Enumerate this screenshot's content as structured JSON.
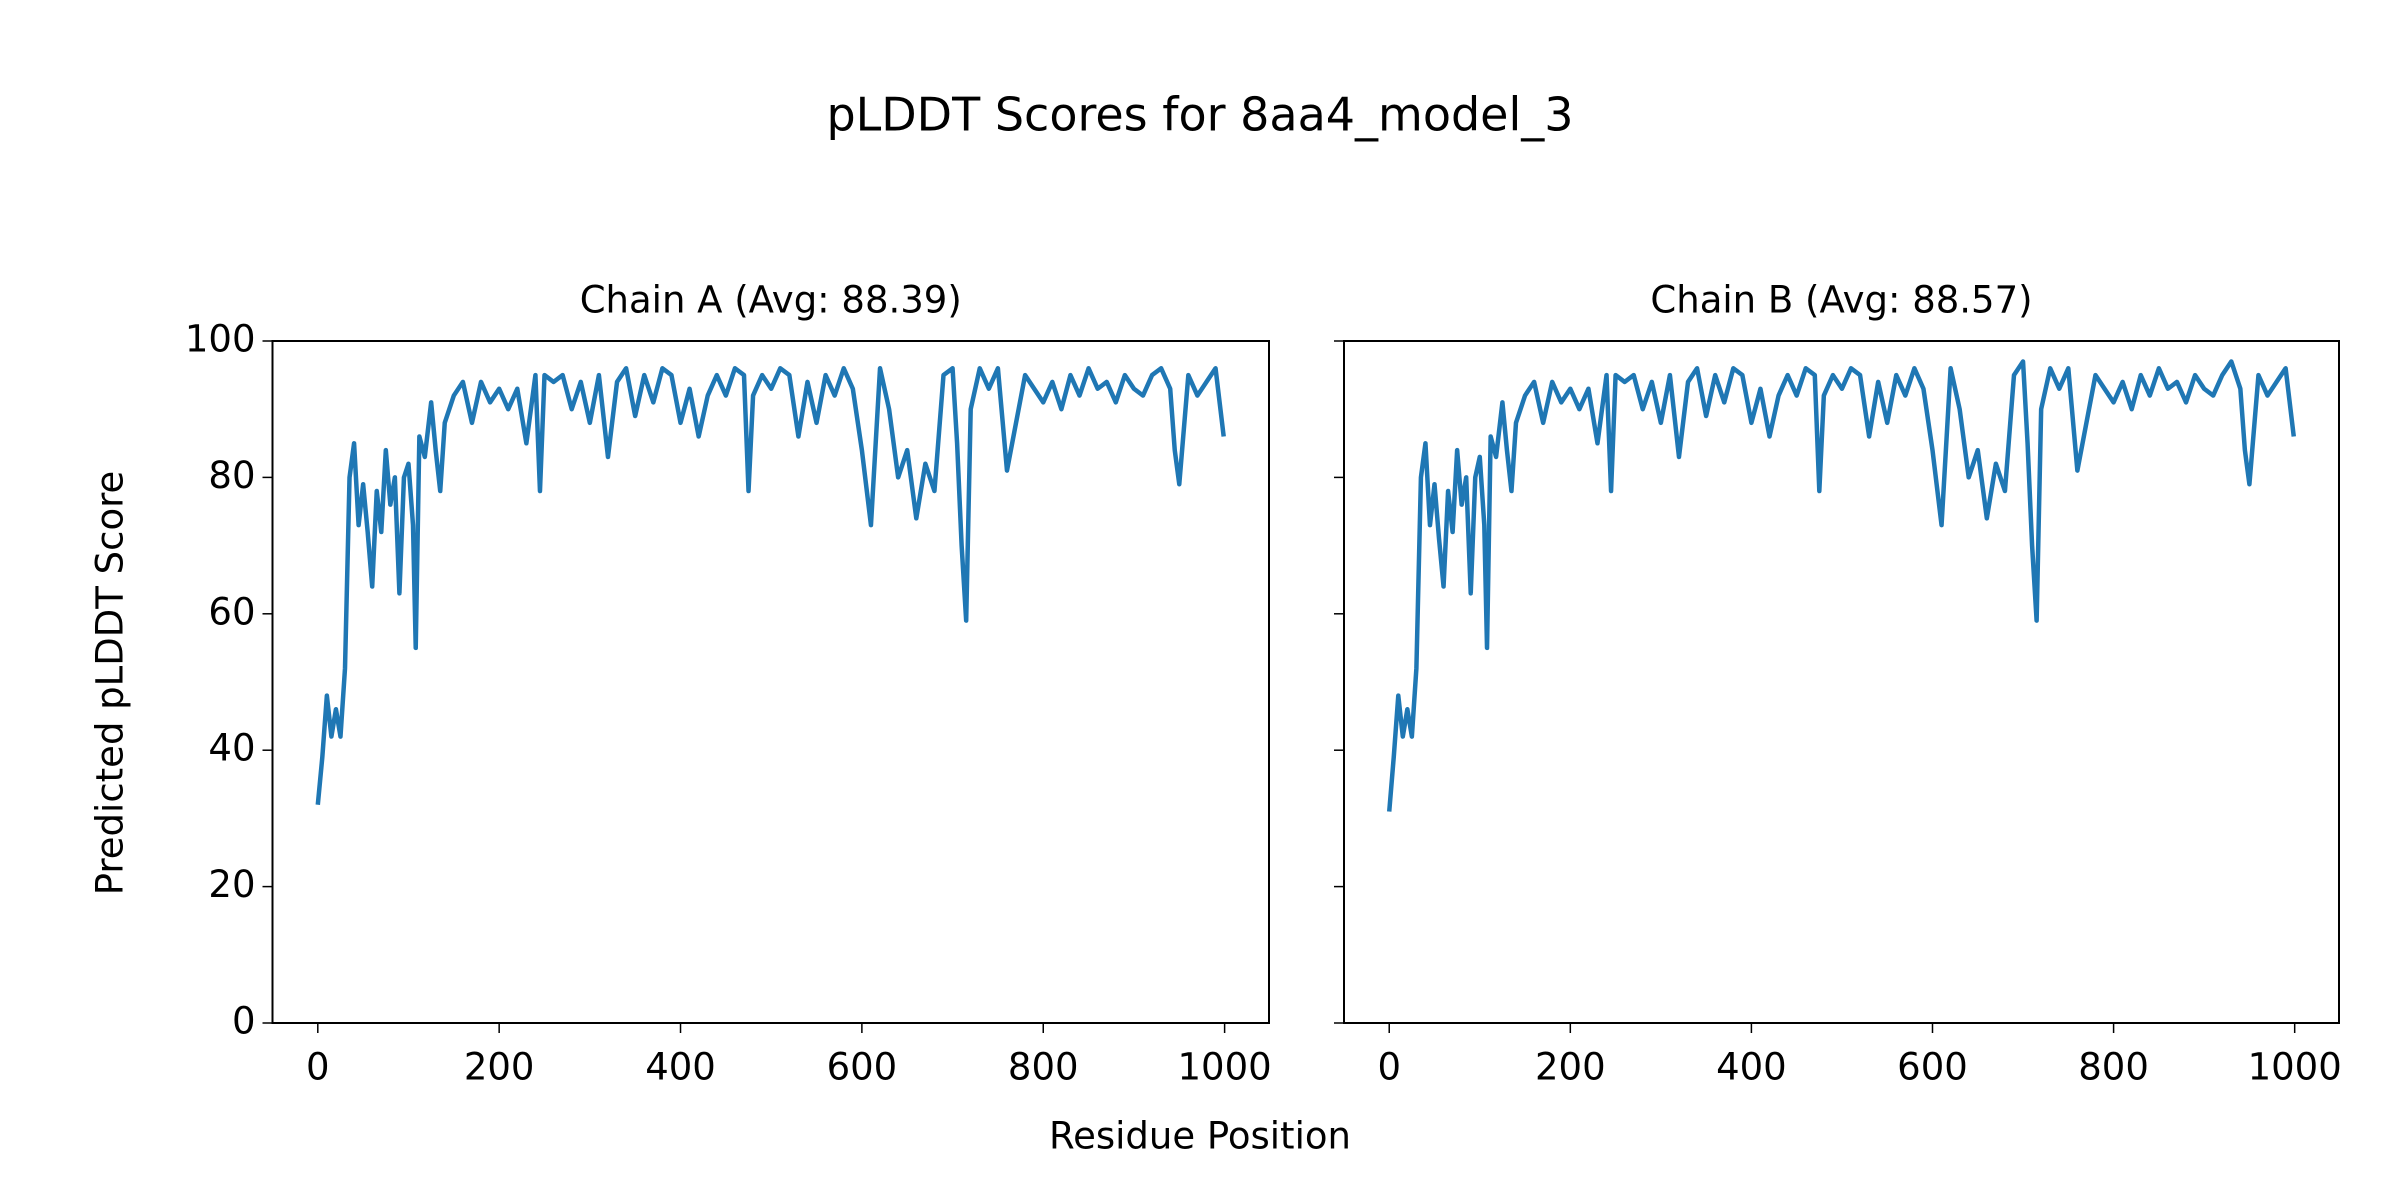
{
  "figure": {
    "title": "pLDDT Scores for 8aa4_model_3",
    "xlabel": "Residue Position",
    "ylabel": "Predicted pLDDT Score"
  },
  "chart_data": [
    {
      "type": "line",
      "title": "Chain A (Avg: 88.39)",
      "color": "#1f77b4",
      "x": [
        0,
        5,
        10,
        15,
        20,
        25,
        30,
        35,
        40,
        45,
        50,
        55,
        60,
        65,
        70,
        75,
        80,
        85,
        90,
        95,
        100,
        105,
        108,
        112,
        118,
        125,
        130,
        135,
        140,
        150,
        160,
        170,
        180,
        190,
        200,
        210,
        220,
        230,
        240,
        245,
        250,
        260,
        270,
        280,
        290,
        300,
        310,
        320,
        330,
        340,
        350,
        360,
        370,
        380,
        390,
        400,
        410,
        420,
        430,
        440,
        450,
        460,
        470,
        475,
        480,
        490,
        500,
        510,
        520,
        530,
        540,
        550,
        560,
        570,
        580,
        590,
        600,
        610,
        620,
        630,
        640,
        650,
        660,
        670,
        680,
        690,
        700,
        705,
        710,
        715,
        720,
        730,
        740,
        750,
        760,
        770,
        780,
        790,
        800,
        810,
        820,
        830,
        840,
        850,
        860,
        870,
        880,
        890,
        900,
        910,
        920,
        930,
        940,
        945,
        950,
        960,
        970,
        980,
        990,
        999
      ],
      "values": [
        32,
        39,
        48,
        42,
        46,
        42,
        52,
        80,
        85,
        73,
        79,
        72,
        64,
        78,
        72,
        84,
        76,
        80,
        63,
        80,
        82,
        73,
        55,
        86,
        83,
        91,
        84,
        78,
        88,
        92,
        94,
        88,
        94,
        91,
        93,
        90,
        93,
        85,
        95,
        78,
        95,
        94,
        95,
        90,
        94,
        88,
        95,
        83,
        94,
        96,
        89,
        95,
        91,
        96,
        95,
        88,
        93,
        86,
        92,
        95,
        92,
        96,
        95,
        78,
        92,
        95,
        93,
        96,
        95,
        86,
        94,
        88,
        95,
        92,
        96,
        93,
        84,
        73,
        96,
        90,
        80,
        84,
        74,
        82,
        78,
        95,
        96,
        85,
        70,
        59,
        90,
        96,
        93,
        96,
        81,
        88,
        95,
        93,
        91,
        94,
        90,
        95,
        92,
        96,
        93,
        94,
        91,
        95,
        93,
        92,
        95,
        96,
        93,
        84,
        79,
        95,
        92,
        94,
        96,
        86
      ],
      "xlim": [
        -49.95,
        1048.95
      ],
      "xticks": [
        0,
        200,
        400,
        600,
        800,
        1000
      ],
      "ylim": [
        0,
        100
      ],
      "yticks": [
        0,
        20,
        40,
        60,
        80,
        100
      ]
    },
    {
      "type": "line",
      "title": "Chain B (Avg: 88.57)",
      "color": "#1f77b4",
      "x": [
        0,
        5,
        10,
        15,
        20,
        25,
        30,
        35,
        40,
        45,
        50,
        55,
        60,
        65,
        70,
        75,
        80,
        85,
        90,
        95,
        100,
        105,
        108,
        112,
        118,
        125,
        130,
        135,
        140,
        150,
        160,
        170,
        180,
        190,
        200,
        210,
        220,
        230,
        240,
        245,
        250,
        260,
        270,
        280,
        290,
        300,
        310,
        320,
        330,
        340,
        350,
        360,
        370,
        380,
        390,
        400,
        410,
        420,
        430,
        440,
        450,
        460,
        470,
        475,
        480,
        490,
        500,
        510,
        520,
        530,
        540,
        550,
        560,
        570,
        580,
        590,
        600,
        610,
        620,
        630,
        640,
        650,
        660,
        670,
        680,
        690,
        700,
        705,
        710,
        715,
        720,
        730,
        740,
        750,
        760,
        770,
        780,
        790,
        800,
        810,
        820,
        830,
        840,
        850,
        860,
        870,
        880,
        890,
        900,
        910,
        920,
        930,
        940,
        945,
        950,
        960,
        970,
        980,
        990,
        999
      ],
      "values": [
        31,
        39,
        48,
        42,
        46,
        42,
        52,
        80,
        85,
        73,
        79,
        71,
        64,
        78,
        72,
        84,
        76,
        80,
        63,
        80,
        83,
        73,
        55,
        86,
        83,
        91,
        84,
        78,
        88,
        92,
        94,
        88,
        94,
        91,
        93,
        90,
        93,
        85,
        95,
        78,
        95,
        94,
        95,
        90,
        94,
        88,
        95,
        83,
        94,
        96,
        89,
        95,
        91,
        96,
        95,
        88,
        93,
        86,
        92,
        95,
        92,
        96,
        95,
        78,
        92,
        95,
        93,
        96,
        95,
        86,
        94,
        88,
        95,
        92,
        96,
        93,
        84,
        73,
        96,
        90,
        80,
        84,
        74,
        82,
        78,
        95,
        97,
        85,
        70,
        59,
        90,
        96,
        93,
        96,
        81,
        88,
        95,
        93,
        91,
        94,
        90,
        95,
        92,
        96,
        93,
        94,
        91,
        95,
        93,
        92,
        95,
        97,
        93,
        84,
        79,
        95,
        92,
        94,
        96,
        86
      ],
      "xlim": [
        -49.95,
        1048.95
      ],
      "xticks": [
        0,
        200,
        400,
        600,
        800,
        1000
      ],
      "ylim": [
        0,
        100
      ],
      "yticks": [
        0,
        20,
        40,
        60,
        80,
        100
      ]
    }
  ]
}
